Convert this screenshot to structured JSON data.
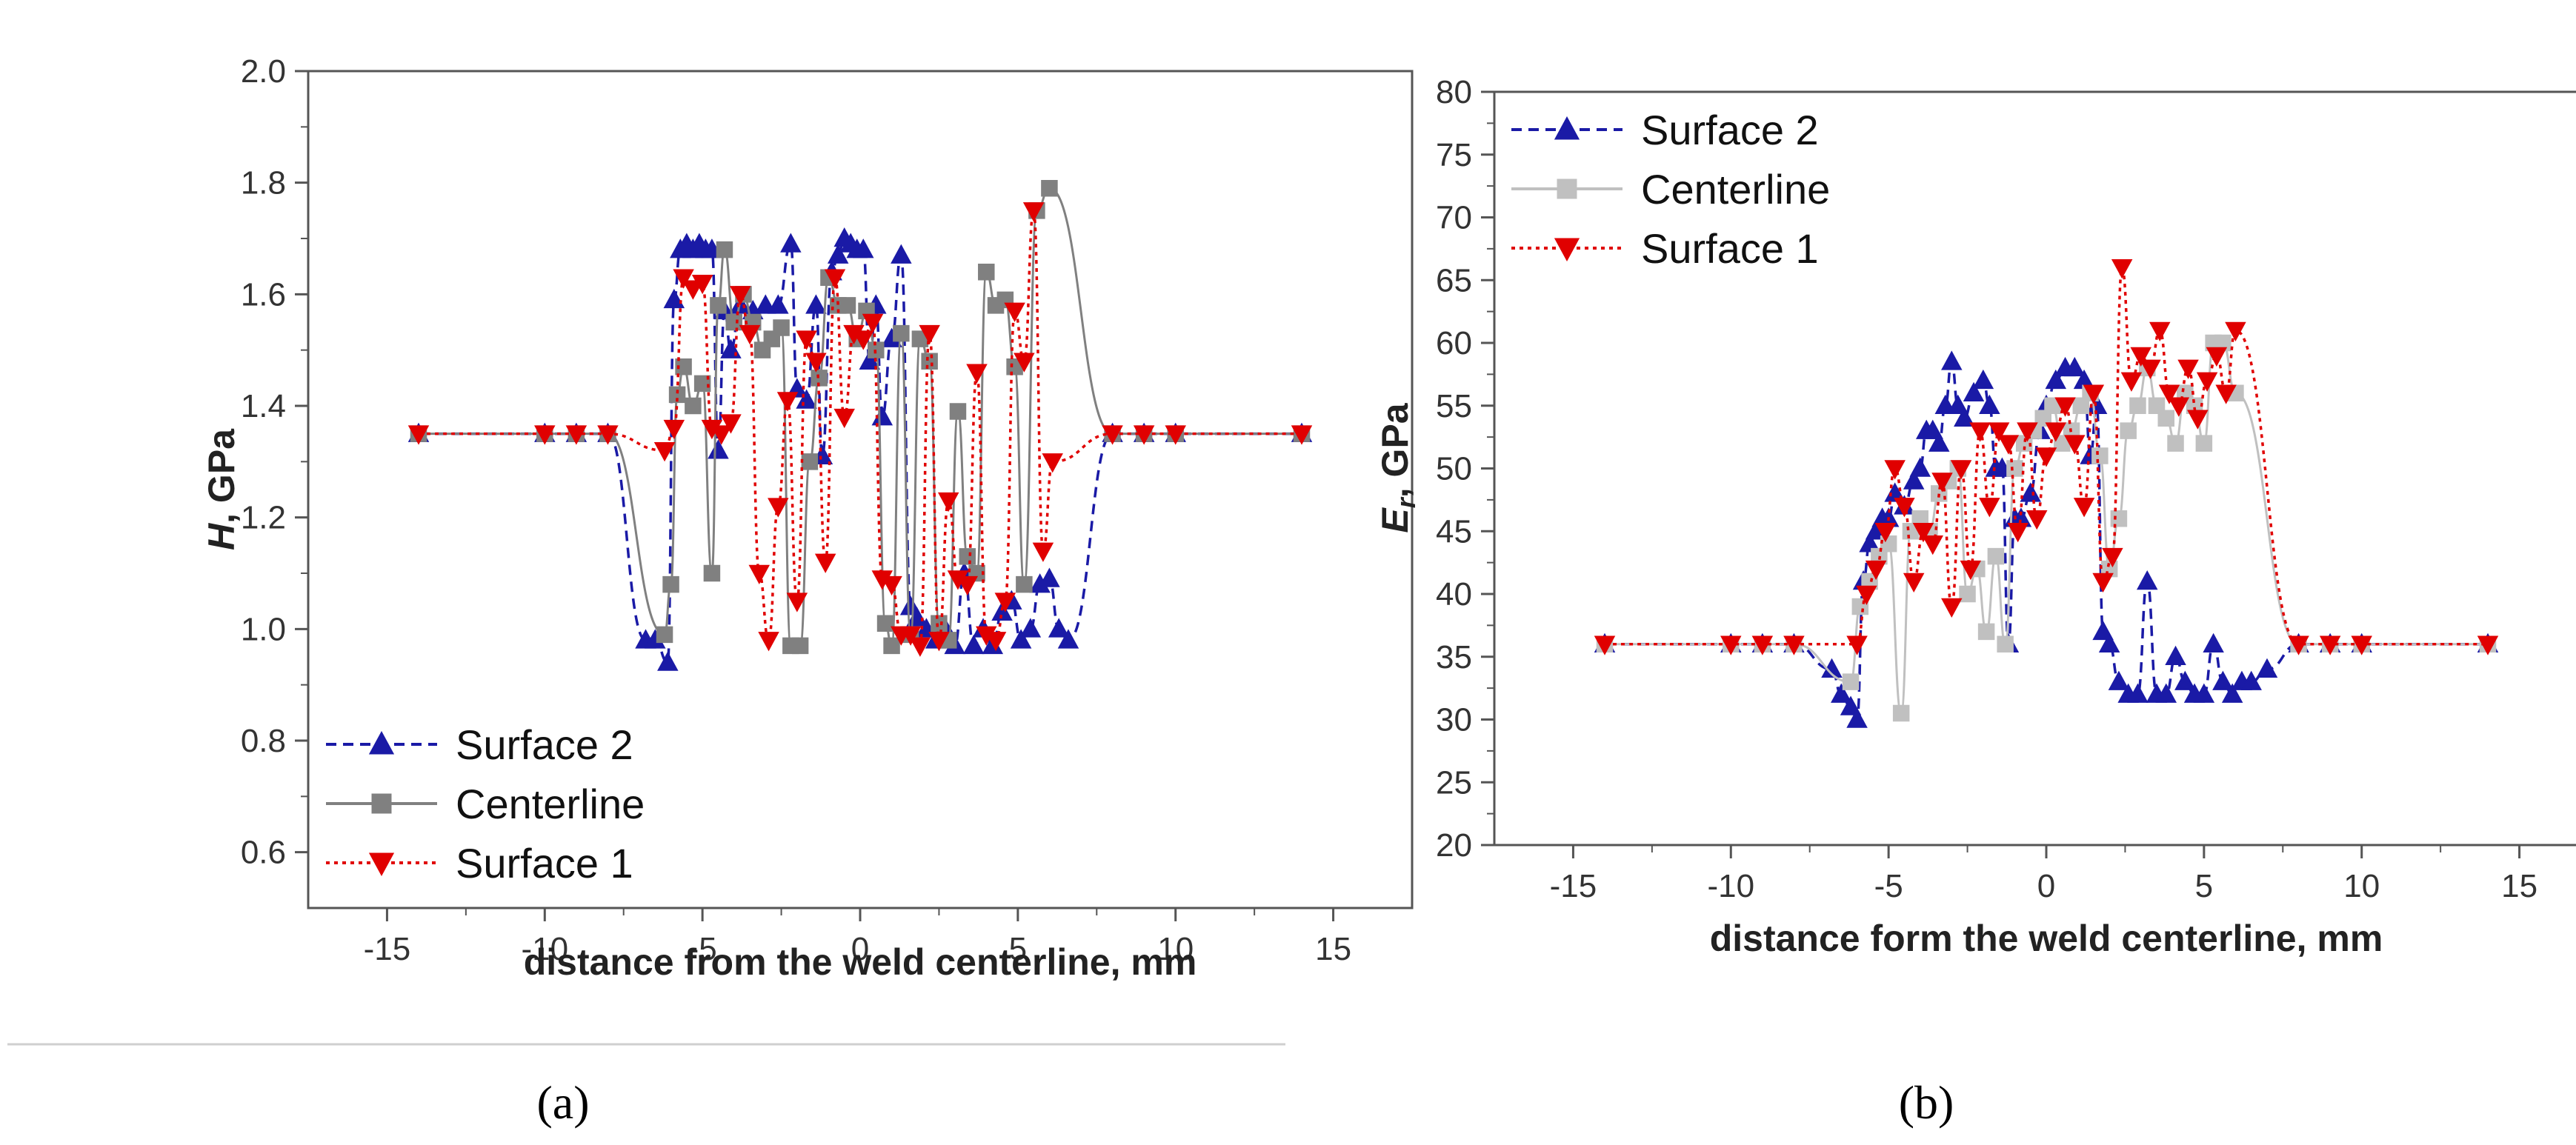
{
  "panel_labels": {
    "a": "(a)",
    "b": "(b)"
  },
  "chart_data": [
    {
      "type": "scatter",
      "panel": "a",
      "xlabel": "distance from the weld centerline, mm",
      "ylabel": "H, GPa",
      "ylabel_italic": "H",
      "ylabel_rest": ", GPa",
      "xlim": [
        -17.5,
        17.5
      ],
      "ylim": [
        0.5,
        2.0
      ],
      "xticks": [
        -15,
        -10,
        -5,
        0,
        5,
        10,
        15
      ],
      "yticks": [
        0.6,
        0.8,
        1.0,
        1.2,
        1.4,
        1.6,
        1.8,
        2.0
      ],
      "ytick_labels": [
        "0.6",
        "0.8",
        "1.0",
        "1.2",
        "1.4",
        "1.6",
        "1.8",
        "2.0"
      ],
      "legend_position": "bottom-left",
      "series": [
        {
          "name": "Surface 2",
          "color": "#1a1aa6",
          "marker": "triangle-up",
          "line": "dashed",
          "x": [
            -14,
            -10,
            -9,
            -8,
            -6.8,
            -6.5,
            -6.1,
            -5.9,
            -5.7,
            -5.5,
            -5.3,
            -5.1,
            -4.9,
            -4.7,
            -4.5,
            -4.3,
            -4.1,
            -3.8,
            -3.4,
            -3.0,
            -2.6,
            -2.2,
            -2.0,
            -1.7,
            -1.4,
            -1.2,
            -0.9,
            -0.7,
            -0.5,
            -0.3,
            -0.1,
            0.1,
            0.3,
            0.5,
            0.7,
            1.0,
            1.3,
            1.6,
            1.8,
            2.1,
            2.4,
            2.7,
            3.0,
            3.3,
            3.6,
            3.9,
            4.2,
            4.5,
            4.8,
            5.1,
            5.4,
            5.7,
            6.0,
            6.3,
            6.6,
            8,
            9,
            10,
            14
          ],
          "y": [
            1.35,
            1.35,
            1.35,
            1.35,
            0.98,
            0.98,
            0.94,
            1.59,
            1.68,
            1.69,
            1.68,
            1.69,
            1.68,
            1.68,
            1.32,
            1.57,
            1.5,
            1.58,
            1.57,
            1.58,
            1.58,
            1.69,
            1.43,
            1.41,
            1.58,
            1.31,
            1.64,
            1.67,
            1.7,
            1.69,
            1.68,
            1.68,
            1.48,
            1.58,
            1.38,
            1.52,
            1.67,
            1.04,
            1.02,
            1.0,
            0.98,
            1.0,
            0.97,
            1.1,
            0.97,
            1.0,
            0.97,
            1.03,
            1.05,
            0.98,
            1.0,
            1.08,
            1.09,
            1.0,
            0.98,
            1.35,
            1.35,
            1.35,
            1.35
          ]
        },
        {
          "name": "Centerline",
          "color": "#808080",
          "marker": "square",
          "line": "solid",
          "x": [
            -14,
            -10,
            -9,
            -8,
            -6.2,
            -6.0,
            -5.8,
            -5.6,
            -5.3,
            -5.0,
            -4.7,
            -4.5,
            -4.3,
            -4.0,
            -3.7,
            -3.4,
            -3.1,
            -2.8,
            -2.5,
            -2.2,
            -1.9,
            -1.6,
            -1.3,
            -1.0,
            -0.7,
            -0.4,
            -0.1,
            0.2,
            0.5,
            0.8,
            1.0,
            1.3,
            1.6,
            1.9,
            2.2,
            2.5,
            2.8,
            3.1,
            3.4,
            3.7,
            4.0,
            4.3,
            4.6,
            4.9,
            5.2,
            5.6,
            6.0,
            8,
            9,
            10,
            14
          ],
          "y": [
            1.35,
            1.35,
            1.35,
            1.35,
            0.99,
            1.08,
            1.42,
            1.47,
            1.4,
            1.44,
            1.1,
            1.58,
            1.68,
            1.55,
            1.6,
            1.55,
            1.5,
            1.52,
            1.54,
            0.97,
            0.97,
            1.3,
            1.45,
            1.63,
            1.58,
            1.58,
            1.52,
            1.57,
            1.5,
            1.01,
            0.97,
            1.53,
            0.99,
            1.52,
            1.48,
            1.01,
            0.98,
            1.39,
            1.13,
            1.1,
            1.64,
            1.58,
            1.59,
            1.47,
            1.08,
            1.75,
            1.79,
            1.35,
            1.35,
            1.35,
            1.35
          ]
        },
        {
          "name": "Surface 1",
          "color": "#e00000",
          "marker": "triangle-down",
          "line": "dotted",
          "x": [
            -14,
            -10,
            -9,
            -8,
            -6.2,
            -5.9,
            -5.6,
            -5.3,
            -5.0,
            -4.7,
            -4.4,
            -4.1,
            -3.8,
            -3.5,
            -3.2,
            -2.9,
            -2.6,
            -2.3,
            -2.0,
            -1.7,
            -1.4,
            -1.1,
            -0.8,
            -0.5,
            -0.2,
            0.1,
            0.4,
            0.7,
            1.0,
            1.3,
            1.6,
            1.9,
            2.2,
            2.5,
            2.8,
            3.1,
            3.4,
            3.7,
            4.0,
            4.3,
            4.6,
            4.9,
            5.2,
            5.5,
            5.8,
            6.1,
            8,
            9,
            10,
            14
          ],
          "y": [
            1.35,
            1.35,
            1.35,
            1.35,
            1.32,
            1.36,
            1.63,
            1.61,
            1.62,
            1.36,
            1.35,
            1.37,
            1.6,
            1.53,
            1.1,
            0.98,
            1.22,
            1.41,
            1.05,
            1.52,
            1.48,
            1.12,
            1.63,
            1.38,
            1.53,
            1.52,
            1.55,
            1.09,
            1.08,
            0.99,
            0.99,
            0.97,
            1.53,
            0.98,
            1.23,
            1.09,
            1.08,
            1.46,
            0.99,
            0.98,
            1.05,
            1.57,
            1.48,
            1.75,
            1.14,
            1.3,
            1.35,
            1.35,
            1.35,
            1.35
          ]
        }
      ]
    },
    {
      "type": "scatter",
      "panel": "b",
      "xlabel": "distance form the weld centerline, mm",
      "ylabel": "Er, GPa",
      "ylabel_italic": "E",
      "ylabel_sub": "r",
      "ylabel_rest": ", GPa",
      "xlim": [
        -17.5,
        17.5
      ],
      "ylim": [
        20,
        80
      ],
      "xticks": [
        -15,
        -10,
        -5,
        0,
        5,
        10,
        15
      ],
      "yticks": [
        20,
        25,
        30,
        35,
        40,
        45,
        50,
        55,
        60,
        65,
        70,
        75,
        80
      ],
      "ytick_labels": [
        "20",
        "25",
        "30",
        "35",
        "40",
        "45",
        "50",
        "55",
        "60",
        "65",
        "70",
        "75",
        "80"
      ],
      "legend_position": "top-left",
      "series": [
        {
          "name": "Surface 2",
          "color": "#1a1aa6",
          "marker": "triangle-up",
          "line": "dashed",
          "x": [
            -14,
            -10,
            -9,
            -8,
            -6.8,
            -6.5,
            -6.2,
            -6.0,
            -5.8,
            -5.6,
            -5.4,
            -5.2,
            -5.0,
            -4.8,
            -4.5,
            -4.2,
            -4.0,
            -3.8,
            -3.6,
            -3.4,
            -3.2,
            -3.0,
            -2.8,
            -2.6,
            -2.3,
            -2.0,
            -1.8,
            -1.6,
            -1.4,
            -1.2,
            -1.0,
            -0.8,
            -0.5,
            -0.2,
            0.0,
            0.3,
            0.6,
            0.9,
            1.2,
            1.4,
            1.6,
            1.8,
            2.0,
            2.3,
            2.6,
            2.9,
            3.2,
            3.5,
            3.8,
            4.1,
            4.4,
            4.7,
            5.0,
            5.3,
            5.6,
            5.9,
            6.2,
            6.5,
            7.0,
            8,
            9,
            10,
            14
          ],
          "y": [
            36,
            36,
            36,
            36,
            34,
            32,
            31,
            30,
            41,
            44,
            45,
            46,
            46,
            48,
            47,
            49,
            50,
            53,
            53,
            52,
            55,
            58.5,
            55,
            54,
            56,
            57,
            55,
            50,
            50,
            36,
            46,
            46,
            48,
            53,
            55,
            57,
            58,
            58,
            57,
            51,
            55,
            37,
            36,
            33,
            32,
            32,
            41,
            32,
            32,
            35,
            33,
            32,
            32,
            36,
            33,
            32,
            33,
            33,
            34,
            36,
            36,
            36,
            36
          ]
        },
        {
          "name": "Centerline",
          "color": "#c0c0c0",
          "marker": "square",
          "line": "solid",
          "x": [
            -14,
            -10,
            -9,
            -8,
            -6.2,
            -5.9,
            -5.6,
            -5.3,
            -5.0,
            -4.6,
            -4.3,
            -4.0,
            -3.7,
            -3.4,
            -3.1,
            -2.8,
            -2.5,
            -2.2,
            -1.9,
            -1.6,
            -1.3,
            -1.0,
            -0.7,
            -0.4,
            -0.1,
            0.2,
            0.5,
            0.8,
            1.1,
            1.4,
            1.7,
            2.0,
            2.3,
            2.6,
            2.9,
            3.2,
            3.5,
            3.8,
            4.1,
            4.4,
            4.7,
            5.0,
            5.3,
            5.6,
            6.0,
            8,
            9,
            10,
            14
          ],
          "y": [
            36,
            36,
            36,
            36,
            33,
            39,
            41,
            43,
            44,
            30.5,
            45,
            46,
            45,
            48,
            49,
            50,
            40,
            42,
            37,
            43,
            36,
            50,
            52,
            53,
            54,
            55,
            52,
            53,
            55,
            56,
            51,
            42,
            46,
            53,
            55,
            58,
            55,
            54,
            52,
            56,
            55,
            52,
            60,
            60,
            56,
            36,
            36,
            36,
            36
          ]
        },
        {
          "name": "Surface 1",
          "color": "#e00000",
          "marker": "triangle-down",
          "line": "dotted",
          "x": [
            -14,
            -10,
            -9,
            -8,
            -6.0,
            -5.7,
            -5.4,
            -5.1,
            -4.8,
            -4.5,
            -4.2,
            -3.9,
            -3.6,
            -3.3,
            -3.0,
            -2.7,
            -2.4,
            -2.1,
            -1.8,
            -1.5,
            -1.2,
            -0.9,
            -0.6,
            -0.3,
            0.0,
            0.3,
            0.6,
            0.9,
            1.2,
            1.5,
            1.8,
            2.1,
            2.4,
            2.7,
            3.0,
            3.3,
            3.6,
            3.9,
            4.2,
            4.5,
            4.8,
            5.1,
            5.4,
            5.7,
            6.0,
            8,
            9,
            10,
            14
          ],
          "y": [
            36,
            36,
            36,
            36,
            36,
            40,
            42,
            45,
            50,
            47,
            41,
            45,
            44,
            49,
            39,
            50,
            42,
            53,
            47,
            53,
            52,
            45,
            53,
            46,
            51,
            53,
            55,
            52,
            47,
            56,
            41,
            43,
            66,
            57,
            59,
            58,
            61,
            56,
            55,
            58,
            54,
            57,
            59,
            56,
            61,
            36,
            36,
            36,
            36
          ]
        }
      ]
    }
  ]
}
